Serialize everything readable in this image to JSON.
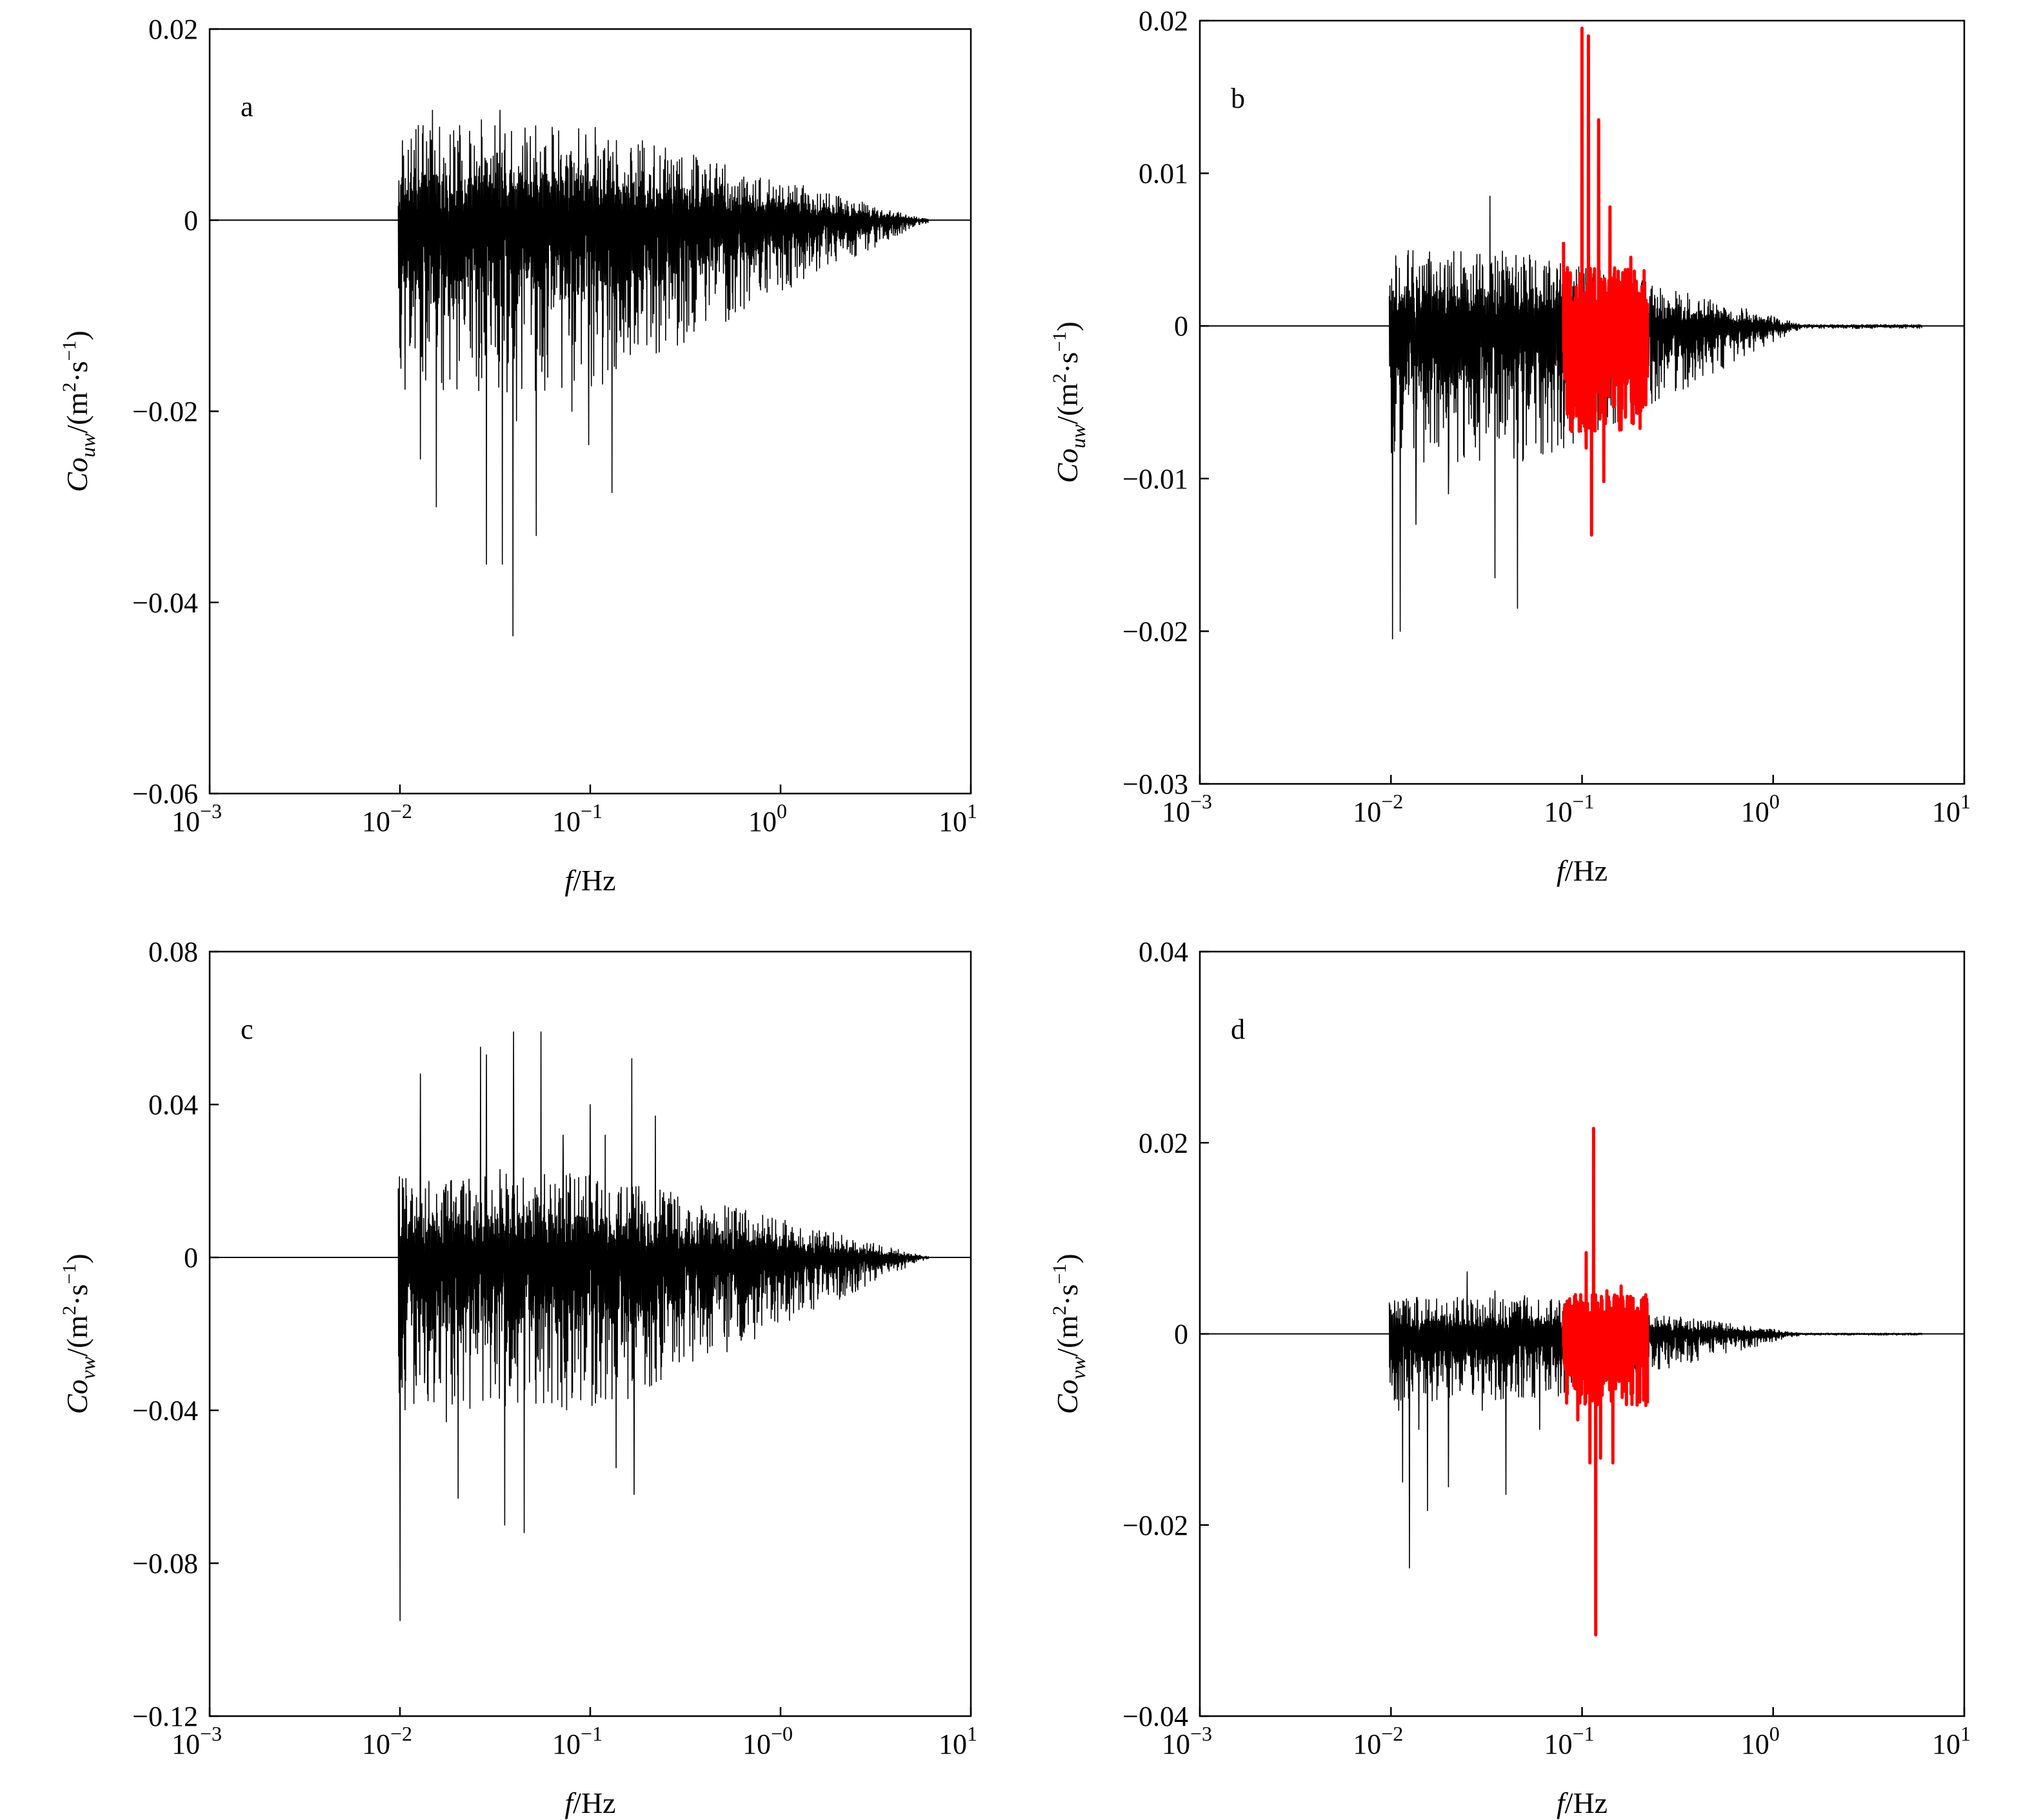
{
  "chart_data": [
    {
      "type": "line",
      "panel_label": "a",
      "ylabel": {
        "prefix": "Co",
        "sub": "uw",
        "unit_open": "/(m",
        "sup1": "2",
        "mid": "·s",
        "sup2": "−1",
        "close": ")"
      },
      "xlabel": {
        "italic": "f",
        "rest": "/Hz"
      },
      "x_scale": "log",
      "xlim": [
        0.001,
        10
      ],
      "ylim": [
        -0.06,
        0.02
      ],
      "x_ticks": [
        {
          "base": "10",
          "exp": "−3"
        },
        {
          "base": "10",
          "exp": "−2"
        },
        {
          "base": "10",
          "exp": "−1"
        },
        {
          "base": "10",
          "exp": "0"
        },
        {
          "base": "10",
          "exp": "1"
        }
      ],
      "y_ticks": [
        {
          "value": -0.06,
          "label": "−0.06"
        },
        {
          "value": -0.04,
          "label": "−0.04"
        },
        {
          "value": -0.02,
          "label": "−0.02"
        },
        {
          "value": 0,
          "label": "0"
        },
        {
          "value": 0.02,
          "label": "0.02"
        }
      ],
      "series": [
        {
          "color": "#000000",
          "x_range": [
            0.0098,
            6.0
          ],
          "noise_amplitude": 0.018,
          "decay_start": 0.1,
          "decay_end": 6.0,
          "spikes": [
            [
              0.0098,
              0.0015
            ],
            [
              0.0115,
              -0.01
            ],
            [
              0.0128,
              -0.025
            ],
            [
              0.0148,
              0.0115
            ],
            [
              0.0155,
              -0.03
            ],
            [
              0.0175,
              0.001
            ],
            [
              0.018,
              -0.01
            ],
            [
              0.0242,
              0.003
            ],
            [
              0.0268,
              0.0105
            ],
            [
              0.0285,
              -0.036
            ],
            [
              0.0335,
              0.0115
            ],
            [
              0.0345,
              -0.036
            ],
            [
              0.0392,
              -0.0435
            ],
            [
              0.041,
              -0.021
            ],
            [
              0.0465,
              0.007
            ],
            [
              0.052,
              -0.033
            ],
            [
              0.065,
              0.005
            ],
            [
              0.075,
              0.0068
            ],
            [
              0.08,
              -0.02
            ],
            [
              0.095,
              0.006
            ],
            [
              0.098,
              -0.0235
            ],
            [
              0.125,
              0.006
            ],
            [
              0.13,
              -0.0285
            ]
          ]
        }
      ]
    },
    {
      "type": "line",
      "panel_label": "b",
      "ylabel": {
        "prefix": "Co",
        "sub": "uw",
        "unit_open": "/(m",
        "sup1": "2",
        "mid": "·s",
        "sup2": "−1",
        "close": ")"
      },
      "xlabel": {
        "italic": "f",
        "rest": "/Hz"
      },
      "x_scale": "log",
      "xlim": [
        0.001,
        10
      ],
      "ylim": [
        -0.03,
        0.02
      ],
      "x_ticks": [
        {
          "base": "10",
          "exp": "−3"
        },
        {
          "base": "10",
          "exp": "−2"
        },
        {
          "base": "10",
          "exp": "−1"
        },
        {
          "base": "10",
          "exp": "0"
        },
        {
          "base": "10",
          "exp": "1"
        }
      ],
      "y_ticks": [
        {
          "value": -0.03,
          "label": "−0.03"
        },
        {
          "value": -0.02,
          "label": "−0.02"
        },
        {
          "value": -0.01,
          "label": "−0.01"
        },
        {
          "value": 0,
          "label": "0"
        },
        {
          "value": 0.01,
          "label": "0.01"
        },
        {
          "value": 0.02,
          "label": "0.02"
        }
      ],
      "series": [
        {
          "color": "#000000",
          "x_range": [
            0.0098,
            6.0
          ],
          "noise_amplitude": 0.009,
          "decay_start": 0.06,
          "decay_end": 1.5,
          "spikes": [
            [
              0.01,
              0.0005
            ],
            [
              0.0102,
              -0.0205
            ],
            [
              0.0112,
              -0.02
            ],
            [
              0.012,
              0.0015
            ],
            [
              0.0135,
              -0.013
            ],
            [
              0.0162,
              0.0042
            ],
            [
              0.02,
              -0.011
            ],
            [
              0.025,
              0.003
            ],
            [
              0.033,
              0.0085
            ],
            [
              0.035,
              -0.0165
            ],
            [
              0.04,
              0.0045
            ],
            [
              0.046,
              -0.0185
            ],
            [
              0.05,
              0.004
            ],
            [
              0.06,
              -0.006
            ]
          ]
        },
        {
          "color": "#ff0000",
          "x_range": [
            0.08,
            0.22
          ],
          "noise_amplitude": 0.007,
          "decay_start": 0.3,
          "decay_end": 1.0,
          "spikes": [
            [
              0.08,
              0.0055
            ],
            [
              0.09,
              -0.006
            ],
            [
              0.1,
              0.0195
            ],
            [
              0.105,
              -0.008
            ],
            [
              0.108,
              0.019
            ],
            [
              0.112,
              -0.0137
            ],
            [
              0.122,
              0.0135
            ],
            [
              0.13,
              -0.0102
            ],
            [
              0.14,
              0.0078
            ],
            [
              0.16,
              -0.0068
            ],
            [
              0.18,
              0.0045
            ],
            [
              0.2,
              -0.004
            ]
          ]
        }
      ]
    },
    {
      "type": "line",
      "panel_label": "c",
      "ylabel": {
        "prefix": "Co",
        "sub": "vw",
        "unit_open": "/(m",
        "sup1": "2",
        "mid": "·s",
        "sup2": "−1",
        "close": ")"
      },
      "xlabel": {
        "italic": "f",
        "rest": "/Hz"
      },
      "x_scale": "log",
      "xlim": [
        0.001,
        10
      ],
      "ylim": [
        -0.12,
        0.08
      ],
      "x_ticks": [
        {
          "base": "10",
          "exp": "−3"
        },
        {
          "base": "10",
          "exp": "−2"
        },
        {
          "base": "10",
          "exp": "−1"
        },
        {
          "base": "10",
          "exp": "−0"
        },
        {
          "base": "10",
          "exp": "1"
        }
      ],
      "y_ticks": [
        {
          "value": -0.12,
          "label": "−0.12"
        },
        {
          "value": -0.08,
          "label": "−0.08"
        },
        {
          "value": -0.04,
          "label": "−0.04"
        },
        {
          "value": 0,
          "label": "0"
        },
        {
          "value": 0.04,
          "label": "0.04"
        },
        {
          "value": 0.08,
          "label": "0.08"
        }
      ],
      "series": [
        {
          "color": "#000000",
          "x_range": [
            0.0098,
            6.0
          ],
          "noise_amplitude": 0.04,
          "decay_start": 0.12,
          "decay_end": 6.0,
          "spikes": [
            [
              0.01,
              -0.095
            ],
            [
              0.0105,
              -0.02
            ],
            [
              0.012,
              -0.028
            ],
            [
              0.0128,
              0.048
            ],
            [
              0.0135,
              -0.03
            ],
            [
              0.015,
              0.01
            ],
            [
              0.0175,
              -0.043
            ],
            [
              0.0185,
              0.02
            ],
            [
              0.0202,
              -0.063
            ],
            [
              0.022,
              -0.01
            ],
            [
              0.0265,
              0.055
            ],
            [
              0.0285,
              0.053
            ],
            [
              0.0335,
              0.023
            ],
            [
              0.0355,
              -0.07
            ],
            [
              0.0395,
              0.059
            ],
            [
              0.045,
              -0.072
            ],
            [
              0.055,
              0.059
            ],
            [
              0.06,
              -0.035
            ],
            [
              0.072,
              0.032
            ],
            [
              0.083,
              -0.03
            ],
            [
              0.1,
              0.04
            ],
            [
              0.12,
              0.032
            ],
            [
              0.137,
              -0.055
            ],
            [
              0.165,
              0.052
            ],
            [
              0.17,
              -0.062
            ],
            [
              0.22,
              0.037
            ]
          ]
        }
      ]
    },
    {
      "type": "line",
      "panel_label": "d",
      "ylabel": {
        "prefix": "Co",
        "sub": "vw",
        "unit_open": "/(m",
        "sup1": "2",
        "mid": "·s",
        "sup2": "−1",
        "close": ")"
      },
      "xlabel": {
        "italic": "f",
        "rest": "/Hz"
      },
      "x_scale": "log",
      "xlim": [
        0.001,
        10
      ],
      "ylim": [
        -0.04,
        0.04
      ],
      "x_ticks": [
        {
          "base": "10",
          "exp": "−3"
        },
        {
          "base": "10",
          "exp": "−2"
        },
        {
          "base": "10",
          "exp": "−1"
        },
        {
          "base": "10",
          "exp": "0"
        },
        {
          "base": "10",
          "exp": "1"
        }
      ],
      "y_ticks": [
        {
          "value": -0.04,
          "label": "−0.04"
        },
        {
          "value": -0.02,
          "label": "−0.02"
        },
        {
          "value": 0,
          "label": "0"
        },
        {
          "value": 0.02,
          "label": "0.02"
        },
        {
          "value": 0.04,
          "label": "0.04"
        }
      ],
      "series": [
        {
          "color": "#000000",
          "x_range": [
            0.0098,
            6.0
          ],
          "noise_amplitude": 0.007,
          "decay_start": 0.06,
          "decay_end": 1.5,
          "spikes": [
            [
              0.01,
              0.0025
            ],
            [
              0.0105,
              0.002
            ],
            [
              0.011,
              -0.008
            ],
            [
              0.0115,
              -0.0155
            ],
            [
              0.0125,
              -0.0245
            ],
            [
              0.014,
              -0.01
            ],
            [
              0.0155,
              -0.0185
            ],
            [
              0.017,
              -0.002
            ],
            [
              0.02,
              -0.016
            ],
            [
              0.025,
              0.0065
            ],
            [
              0.03,
              -0.008
            ],
            [
              0.035,
              0.0045
            ],
            [
              0.04,
              -0.0168
            ],
            [
              0.05,
              0.004
            ],
            [
              0.06,
              -0.01
            ]
          ]
        },
        {
          "color": "#ff0000",
          "x_range": [
            0.08,
            0.22
          ],
          "noise_amplitude": 0.0075,
          "decay_start": 0.3,
          "decay_end": 1.0,
          "spikes": [
            [
              0.085,
              0.003
            ],
            [
              0.095,
              -0.009
            ],
            [
              0.105,
              0.0085
            ],
            [
              0.11,
              -0.0135
            ],
            [
              0.115,
              0.0215
            ],
            [
              0.118,
              -0.0315
            ],
            [
              0.125,
              -0.013
            ],
            [
              0.135,
              0.0045
            ],
            [
              0.145,
              -0.0135
            ],
            [
              0.16,
              0.005
            ],
            [
              0.18,
              0.0038
            ],
            [
              0.2,
              -0.004
            ]
          ]
        }
      ]
    }
  ]
}
